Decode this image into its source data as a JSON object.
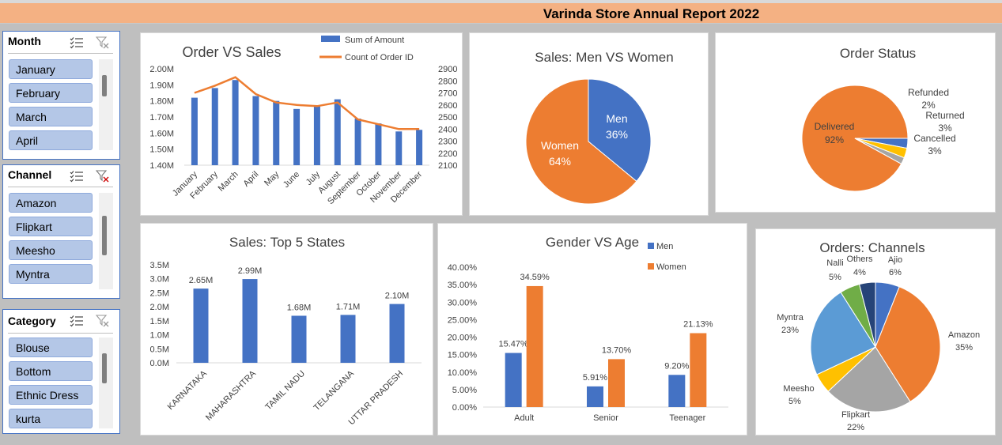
{
  "title": "Varinda Store Annual Report 2022",
  "colors": {
    "blue": "#4472c4",
    "orange": "#ed7d31",
    "gray": "#a5a5a5",
    "yellow": "#ffc000",
    "lightblue": "#5b9bd5",
    "green": "#70ad47",
    "navy": "#264478",
    "header": "#f4b183"
  },
  "slicers": {
    "month": {
      "label": "Month",
      "items": [
        "January",
        "February",
        "March",
        "April"
      ]
    },
    "channel": {
      "label": "Channel",
      "items": [
        "Amazon",
        "Flipkart",
        "Meesho",
        "Myntra"
      ]
    },
    "category": {
      "label": "Category",
      "items": [
        "Blouse",
        "Bottom",
        "Ethnic Dress",
        "kurta"
      ]
    }
  },
  "chart_data": [
    {
      "type": "bar",
      "title": "Order VS Sales",
      "categories": [
        "January",
        "February",
        "March",
        "April",
        "May",
        "June",
        "July",
        "August",
        "September",
        "October",
        "November",
        "December"
      ],
      "series": [
        {
          "name": "Sum of Amount",
          "type": "bar",
          "axis": "left",
          "values": [
            1820000,
            1880000,
            1930000,
            1830000,
            1800000,
            1750000,
            1770000,
            1810000,
            1690000,
            1660000,
            1610000,
            1620000
          ]
        },
        {
          "name": "Count of Order ID",
          "type": "line",
          "axis": "right",
          "values": [
            2700,
            2760,
            2830,
            2690,
            2620,
            2600,
            2590,
            2620,
            2480,
            2440,
            2400,
            2400
          ]
        }
      ],
      "yticks": [
        "2.00M",
        "1.90M",
        "1.80M",
        "1.70M",
        "1.60M",
        "1.50M",
        "1.40M"
      ],
      "y2ticks": [
        "2900",
        "2800",
        "2700",
        "2600",
        "2500",
        "2400",
        "2300",
        "2200",
        "2100"
      ],
      "ylim": [
        1400000,
        2000000
      ],
      "y2lim": [
        2100,
        2900
      ],
      "legend": "top-right"
    },
    {
      "type": "pie",
      "title": "Sales: Men VS Women",
      "labels": [
        "Men",
        "Women"
      ],
      "values": [
        36,
        64
      ],
      "value_labels": [
        "36%",
        "64%"
      ]
    },
    {
      "type": "pie",
      "title": "Order Status",
      "labels": [
        "Delivered",
        "Cancelled",
        "Returned",
        "Refunded"
      ],
      "values": [
        92,
        3,
        3,
        2
      ],
      "value_labels": [
        "92%",
        "3%",
        "3%",
        "2%"
      ]
    },
    {
      "type": "bar",
      "title": "Sales: Top 5 States",
      "categories": [
        "KARNATAKA",
        "MAHARASHTRA",
        "TAMIL NADU",
        "TELANGANA",
        "UTTAR PRADESH"
      ],
      "values": [
        2650000,
        2990000,
        1680000,
        1710000,
        2100000
      ],
      "value_labels": [
        "2.65M",
        "2.99M",
        "1.68M",
        "1.71M",
        "2.10M"
      ],
      "yticks": [
        "3.5M",
        "3.0M",
        "2.5M",
        "2.0M",
        "1.5M",
        "1.0M",
        "0.5M",
        "0.0M"
      ],
      "ylim": [
        0,
        3500000
      ]
    },
    {
      "type": "bar",
      "title": "Gender  VS Age",
      "categories": [
        "Adult",
        "Senior",
        "Teenager"
      ],
      "series": [
        {
          "name": "Men",
          "values": [
            15.47,
            5.91,
            9.2
          ],
          "value_labels": [
            "15.47%",
            "5.91%",
            "9.20%"
          ]
        },
        {
          "name": "Women",
          "values": [
            34.59,
            13.7,
            21.13
          ],
          "value_labels": [
            "34.59%",
            "13.70%",
            "21.13%"
          ]
        }
      ],
      "yticks": [
        "40.00%",
        "35.00%",
        "30.00%",
        "25.00%",
        "20.00%",
        "15.00%",
        "10.00%",
        "5.00%",
        "0.00%"
      ],
      "ylim": [
        0,
        40
      ],
      "legend": "top-right"
    },
    {
      "type": "pie",
      "title": "Orders: Channels",
      "labels": [
        "Ajio",
        "Amazon",
        "Flipkart",
        "Meesho",
        "Myntra",
        "Nalli",
        "Others"
      ],
      "values": [
        6,
        35,
        22,
        5,
        23,
        5,
        4
      ],
      "value_labels": [
        "6%",
        "35%",
        "22%",
        "5%",
        "23%",
        "5%",
        "4%"
      ]
    }
  ]
}
